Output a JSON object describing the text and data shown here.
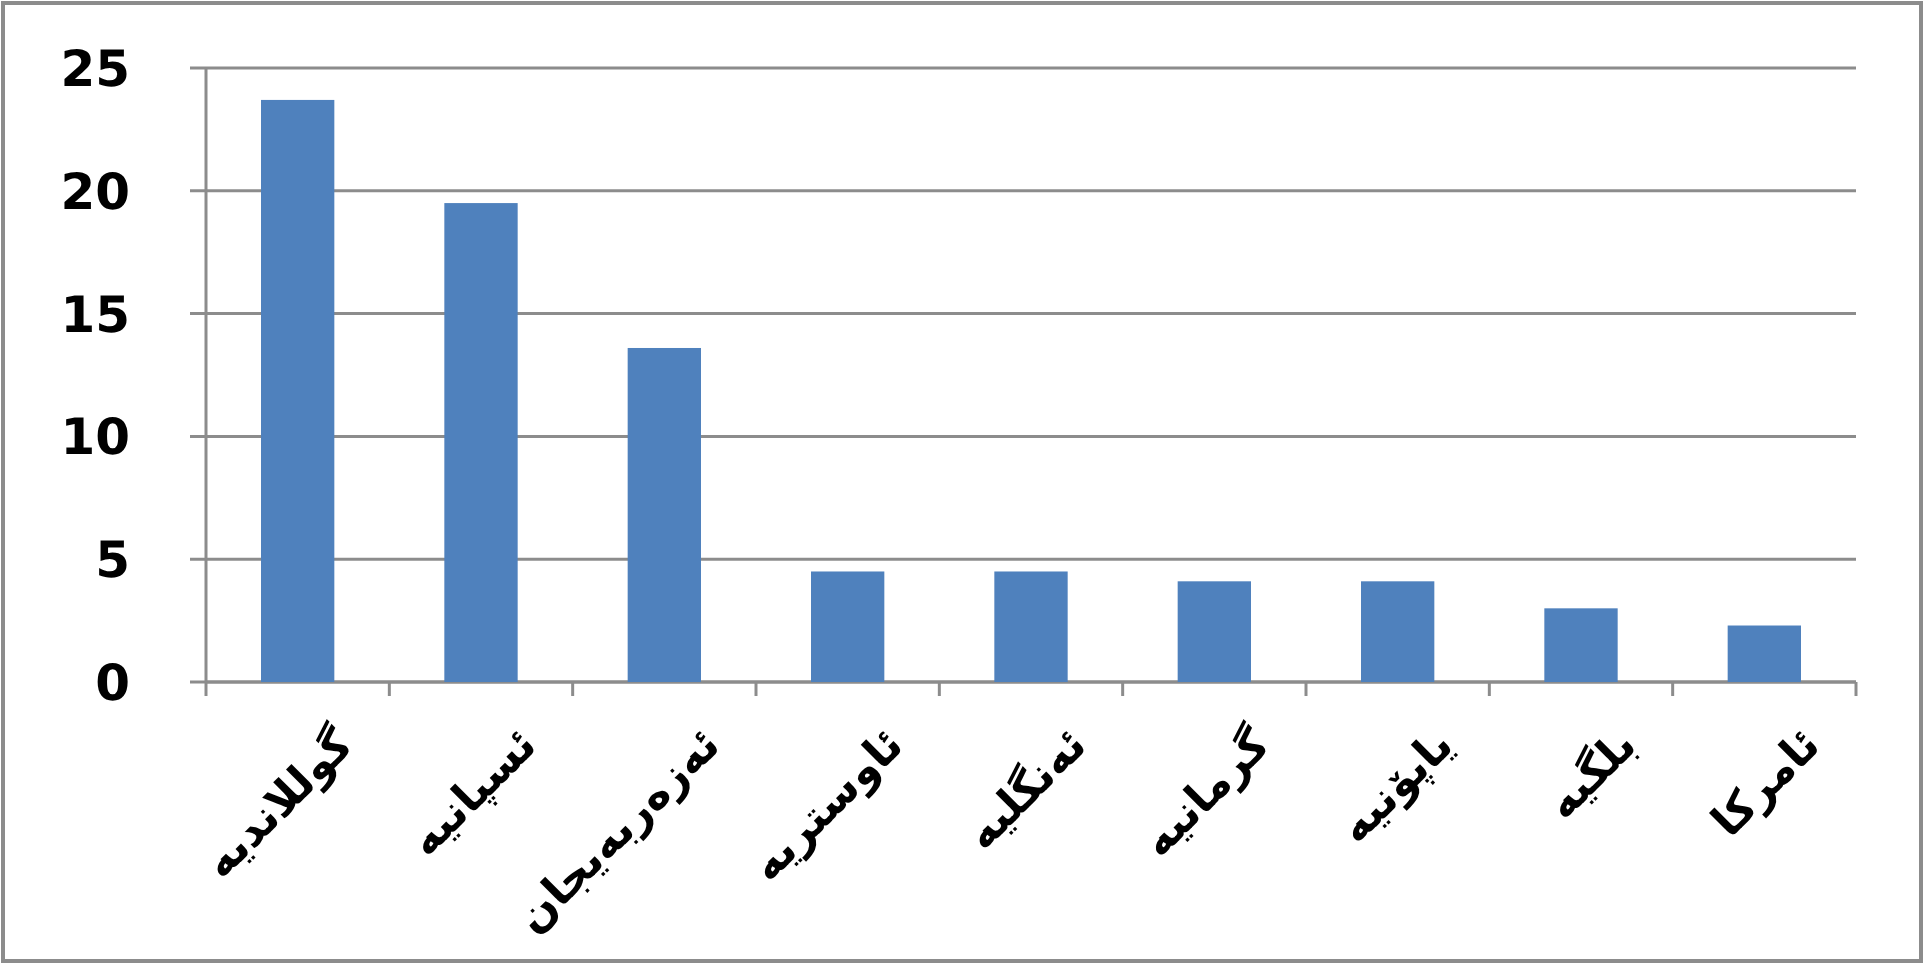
{
  "chart_data": {
    "type": "bar",
    "categories": [
      "گوللاندیه",
      "ئسپانیه",
      "ئەزەربەیجان",
      "ئاوستریه",
      "ئەنگلیه",
      "گرمانیه",
      "یاپۆنیه",
      "بلگیه",
      "ئامرکا"
    ],
    "values": [
      23.7,
      19.5,
      13.6,
      4.5,
      4.5,
      4.1,
      4.1,
      3.0,
      2.3
    ],
    "color": "#4f81bd",
    "ylim": [
      0,
      25
    ],
    "yticks": [
      0,
      5,
      10,
      15,
      20,
      25
    ],
    "grid": "y"
  }
}
